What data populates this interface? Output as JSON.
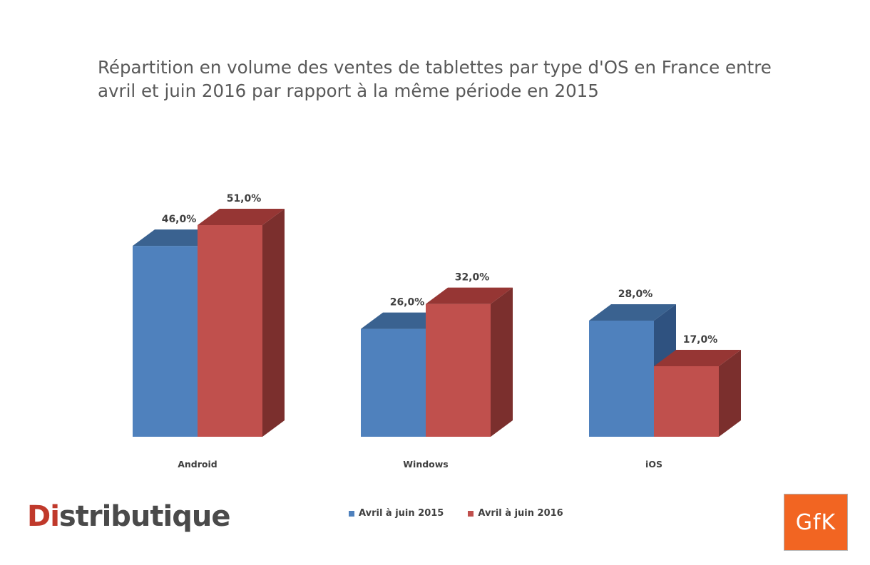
{
  "chart_data": {
    "type": "bar",
    "title": "Répartition en volume des ventes de tablettes par type d'OS en France entre avril et juin 2016 par rapport à la même période en 2015",
    "categories": [
      "Android",
      "Windows",
      "iOS"
    ],
    "series": [
      {
        "name": "Avril à juin 2015",
        "values": [
          46.0,
          26.0,
          28.0
        ],
        "labels": [
          "46,0%",
          "26,0%",
          "28,0%"
        ],
        "color": "#4f81bd",
        "top_color": "#3a6290",
        "side_color": "#2f5280"
      },
      {
        "name": "Avril à juin 2016",
        "values": [
          51.0,
          32.0,
          17.0
        ],
        "labels": [
          "51,0%",
          "32,0%",
          "17,0%"
        ],
        "color": "#c0504d",
        "top_color": "#963634",
        "side_color": "#7b2f2d"
      }
    ],
    "ylim": [
      0,
      51
    ],
    "grid": false,
    "legend_position": "bottom",
    "style": "3d-clustered-column"
  },
  "logos": {
    "left": {
      "prefix": "Di",
      "rest": "stributique"
    },
    "right": "GfK"
  }
}
